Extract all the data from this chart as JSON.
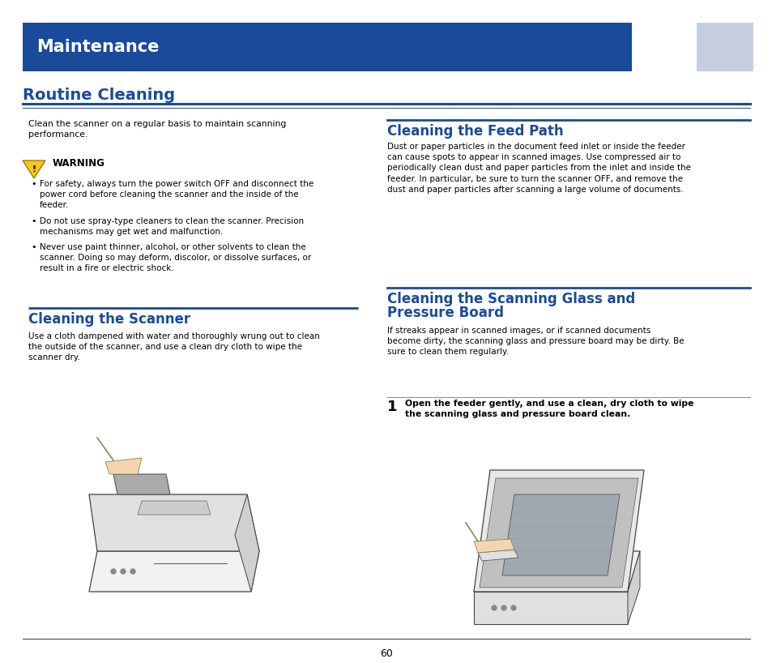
{
  "page_width": 9.54,
  "page_height": 8.18,
  "dpi": 100,
  "bg_color": "#ffffff",
  "header_bg": "#1a4b9b",
  "header_text": "Maintenance",
  "header_text_color": "#ffffff",
  "title_color": "#1a4b9b",
  "section_line_color": "#1a4b9b",
  "body_text_color": "#000000",
  "page_number": "60",
  "routine_cleaning_title": "Routine Cleaning",
  "routine_cleaning_intro": "Clean the scanner on a regular basis to maintain scanning\nperformance.",
  "warning_label": "WARNING",
  "warning_items": [
    "For safety, always turn the power switch OFF and disconnect the\npower cord before cleaning the scanner and the inside of the\nfeeder.",
    "Do not use spray-type cleaners to clean the scanner. Precision\nmechanisms may get wet and malfunction.",
    "Never use paint thinner, alcohol, or other solvents to clean the\nscanner. Doing so may deform, discolor, or dissolve surfaces, or\nresult in a fire or electric shock."
  ],
  "cleaning_scanner_title": "Cleaning the Scanner",
  "cleaning_scanner_text": "Use a cloth dampened with water and thoroughly wrung out to clean\nthe outside of the scanner, and use a clean dry cloth to wipe the\nscanner dry.",
  "feed_path_title": "Cleaning the Feed Path",
  "feed_path_text": "Dust or paper particles in the document feed inlet or inside the feeder\ncan cause spots to appear in scanned images. Use compressed air to\nperiodically clean dust and paper particles from the inlet and inside the\nfeeder. In particular, be sure to turn the scanner OFF, and remove the\ndust and paper particles after scanning a large volume of documents.",
  "scanning_glass_title_line1": "Cleaning the Scanning Glass and",
  "scanning_glass_title_line2": "Pressure Board",
  "scanning_glass_text": "If streaks appear in scanned images, or if scanned documents\nbecome dirty, the scanning glass and pressure board may be dirty. Be\nsure to clean them regularly.",
  "step1_label": "1",
  "step1_text": "Open the feeder gently, and use a clean, dry cloth to wipe\nthe scanning glass and pressure board clean."
}
